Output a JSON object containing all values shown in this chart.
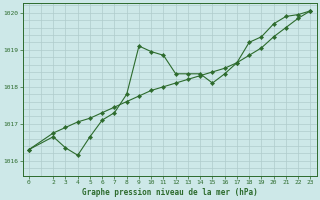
{
  "title": "Graphe pression niveau de la mer (hPa)",
  "bg_color": "#cde8e8",
  "line_color": "#2d6b2d",
  "grid_color": "#b0cccc",
  "xlim": [
    -0.5,
    23.5
  ],
  "ylim": [
    1015.6,
    1020.25
  ],
  "yticks": [
    1016,
    1017,
    1018,
    1019,
    1020
  ],
  "xticks": [
    0,
    2,
    3,
    4,
    5,
    6,
    7,
    8,
    9,
    10,
    11,
    12,
    13,
    14,
    15,
    16,
    17,
    18,
    19,
    20,
    21,
    22,
    23
  ],
  "line1_x": [
    0,
    2,
    3,
    4,
    5,
    6,
    7,
    8,
    9,
    10,
    11,
    12,
    13,
    14,
    15,
    16,
    17,
    18,
    19,
    20,
    21,
    22,
    23
  ],
  "line1_y": [
    1016.3,
    1016.65,
    1016.35,
    1016.15,
    1016.65,
    1017.1,
    1017.3,
    1017.8,
    1019.1,
    1018.95,
    1018.85,
    1018.35,
    1018.35,
    1018.35,
    1018.1,
    1018.35,
    1018.65,
    1019.2,
    1019.35,
    1019.7,
    1019.9,
    1019.95,
    1020.05
  ],
  "line2_x": [
    0,
    2,
    3,
    4,
    5,
    6,
    7,
    8,
    9,
    10,
    11,
    12,
    13,
    14,
    15,
    16,
    17,
    18,
    19,
    20,
    21,
    22,
    23
  ],
  "line2_y": [
    1016.3,
    1016.75,
    1016.9,
    1017.05,
    1017.15,
    1017.3,
    1017.45,
    1017.6,
    1017.75,
    1017.9,
    1018.0,
    1018.1,
    1018.2,
    1018.3,
    1018.4,
    1018.5,
    1018.65,
    1018.85,
    1019.05,
    1019.35,
    1019.6,
    1019.85,
    1020.05
  ]
}
